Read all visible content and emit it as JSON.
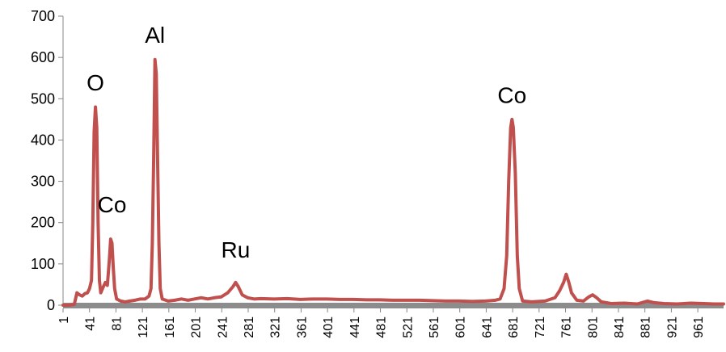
{
  "chart_data": {
    "type": "line",
    "title": "",
    "xlabel": "",
    "ylabel": "",
    "xlim": [
      1,
      1000
    ],
    "ylim": [
      0,
      700
    ],
    "grid": false,
    "legend": "none",
    "y_ticks": [
      0,
      100,
      200,
      300,
      400,
      500,
      600,
      700
    ],
    "y_tick_labels": [
      "0",
      "100",
      "200",
      "300",
      "400",
      "500",
      "600",
      "700"
    ],
    "x_ticks": [
      1,
      41,
      81,
      121,
      161,
      201,
      241,
      281,
      321,
      361,
      401,
      441,
      481,
      521,
      561,
      601,
      641,
      681,
      721,
      761,
      801,
      841,
      881,
      921,
      961
    ],
    "x_tick_labels": [
      "1",
      "41",
      "81",
      "121",
      "161",
      "201",
      "241",
      "281",
      "321",
      "361",
      "401",
      "441",
      "481",
      "521",
      "561",
      "601",
      "641",
      "681",
      "721",
      "761",
      "801",
      "841",
      "881",
      "921",
      "961"
    ],
    "series": [
      {
        "color": "#c0504d",
        "points": [
          [
            1,
            0
          ],
          [
            10,
            0
          ],
          [
            18,
            2
          ],
          [
            22,
            30
          ],
          [
            26,
            25
          ],
          [
            30,
            22
          ],
          [
            34,
            28
          ],
          [
            38,
            30
          ],
          [
            41,
            40
          ],
          [
            44,
            60
          ],
          [
            46,
            200
          ],
          [
            48,
            420
          ],
          [
            50,
            480
          ],
          [
            52,
            430
          ],
          [
            54,
            200
          ],
          [
            56,
            60
          ],
          [
            58,
            30
          ],
          [
            62,
            45
          ],
          [
            65,
            55
          ],
          [
            68,
            48
          ],
          [
            71,
            110
          ],
          [
            73,
            160
          ],
          [
            75,
            150
          ],
          [
            77,
            90
          ],
          [
            79,
            40
          ],
          [
            82,
            15
          ],
          [
            88,
            10
          ],
          [
            95,
            8
          ],
          [
            102,
            10
          ],
          [
            110,
            12
          ],
          [
            118,
            15
          ],
          [
            125,
            15
          ],
          [
            131,
            22
          ],
          [
            134,
            40
          ],
          [
            136,
            150
          ],
          [
            138,
            350
          ],
          [
            140,
            595
          ],
          [
            142,
            560
          ],
          [
            144,
            350
          ],
          [
            146,
            150
          ],
          [
            148,
            40
          ],
          [
            151,
            15
          ],
          [
            160,
            10
          ],
          [
            170,
            12
          ],
          [
            180,
            15
          ],
          [
            190,
            12
          ],
          [
            200,
            15
          ],
          [
            210,
            18
          ],
          [
            220,
            15
          ],
          [
            230,
            18
          ],
          [
            240,
            20
          ],
          [
            250,
            30
          ],
          [
            258,
            45
          ],
          [
            262,
            55
          ],
          [
            266,
            45
          ],
          [
            272,
            25
          ],
          [
            280,
            18
          ],
          [
            290,
            15
          ],
          [
            300,
            16
          ],
          [
            320,
            15
          ],
          [
            340,
            16
          ],
          [
            360,
            14
          ],
          [
            380,
            15
          ],
          [
            400,
            15
          ],
          [
            420,
            14
          ],
          [
            440,
            14
          ],
          [
            460,
            13
          ],
          [
            480,
            13
          ],
          [
            500,
            12
          ],
          [
            520,
            12
          ],
          [
            540,
            12
          ],
          [
            560,
            11
          ],
          [
            580,
            10
          ],
          [
            600,
            10
          ],
          [
            620,
            9
          ],
          [
            640,
            10
          ],
          [
            655,
            12
          ],
          [
            662,
            15
          ],
          [
            668,
            40
          ],
          [
            672,
            120
          ],
          [
            675,
            300
          ],
          [
            678,
            430
          ],
          [
            680,
            450
          ],
          [
            682,
            430
          ],
          [
            685,
            320
          ],
          [
            688,
            120
          ],
          [
            691,
            40
          ],
          [
            696,
            10
          ],
          [
            710,
            8
          ],
          [
            730,
            10
          ],
          [
            745,
            18
          ],
          [
            752,
            35
          ],
          [
            758,
            55
          ],
          [
            762,
            75
          ],
          [
            766,
            55
          ],
          [
            770,
            30
          ],
          [
            778,
            12
          ],
          [
            788,
            10
          ],
          [
            796,
            20
          ],
          [
            802,
            25
          ],
          [
            808,
            18
          ],
          [
            815,
            8
          ],
          [
            830,
            4
          ],
          [
            850,
            5
          ],
          [
            870,
            3
          ],
          [
            885,
            10
          ],
          [
            895,
            6
          ],
          [
            910,
            4
          ],
          [
            930,
            3
          ],
          [
            950,
            5
          ],
          [
            970,
            4
          ],
          [
            985,
            3
          ],
          [
            1000,
            3
          ]
        ]
      }
    ],
    "annotations": [
      {
        "text": "O",
        "x": 50,
        "y": 520
      },
      {
        "text": "Co",
        "x": 75,
        "y": 225
      },
      {
        "text": "Al",
        "x": 140,
        "y": 635
      },
      {
        "text": "Ru",
        "x": 262,
        "y": 115
      },
      {
        "text": "Co",
        "x": 680,
        "y": 490
      }
    ]
  }
}
